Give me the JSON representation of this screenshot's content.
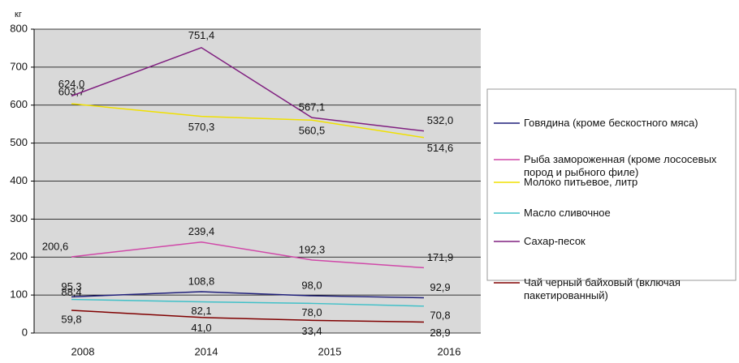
{
  "chart_data": {
    "type": "line",
    "y_unit": "кг",
    "categories": [
      "2008",
      "2014",
      "2015",
      "2016"
    ],
    "ylim": [
      0,
      800
    ],
    "yticks": [
      0,
      100,
      200,
      300,
      400,
      500,
      600,
      700,
      800
    ],
    "grid": true,
    "legend": "right",
    "series": [
      {
        "name": "Говядина (кроме бескостного мяса)",
        "color": "#1f1f7a",
        "values": [
          95.3,
          108.8,
          98.0,
          92.9
        ],
        "value_labels": [
          "95,3",
          "108,8",
          "98,0",
          "92,9"
        ]
      },
      {
        "name": "Рыба замороженная (кроме лососевых пород и рыбного филе)",
        "color": "#d048a8",
        "values": [
          200.6,
          239.4,
          192.3,
          171.9
        ],
        "value_labels": [
          "200,6",
          "239,4",
          "192,3",
          "171,9"
        ]
      },
      {
        "name": "Молоко питьевое, литр",
        "color": "#f0e000",
        "values": [
          603.7,
          570.3,
          560.5,
          514.6
        ],
        "value_labels": [
          "603,7",
          "570,3",
          "560,5",
          "514,6"
        ]
      },
      {
        "name": "Масло сливочное",
        "color": "#40c0c8",
        "values": [
          88.4,
          82.1,
          78.0,
          70.8
        ],
        "value_labels": [
          "88,4",
          "82,1",
          "78,0",
          "70,8"
        ]
      },
      {
        "name": "Сахар-песок",
        "color": "#802080",
        "values": [
          624.0,
          751.4,
          567.1,
          532.0
        ],
        "value_labels": [
          "624,0",
          "751,4",
          "567,1",
          "532,0"
        ]
      },
      {
        "name": "Чай черный байховый (включая пакетированный)",
        "color": "#800000",
        "values": [
          59.8,
          41.0,
          33.4,
          28.9
        ],
        "value_labels": [
          "59,8",
          "41,0",
          "33,4",
          "28,9"
        ]
      }
    ]
  }
}
